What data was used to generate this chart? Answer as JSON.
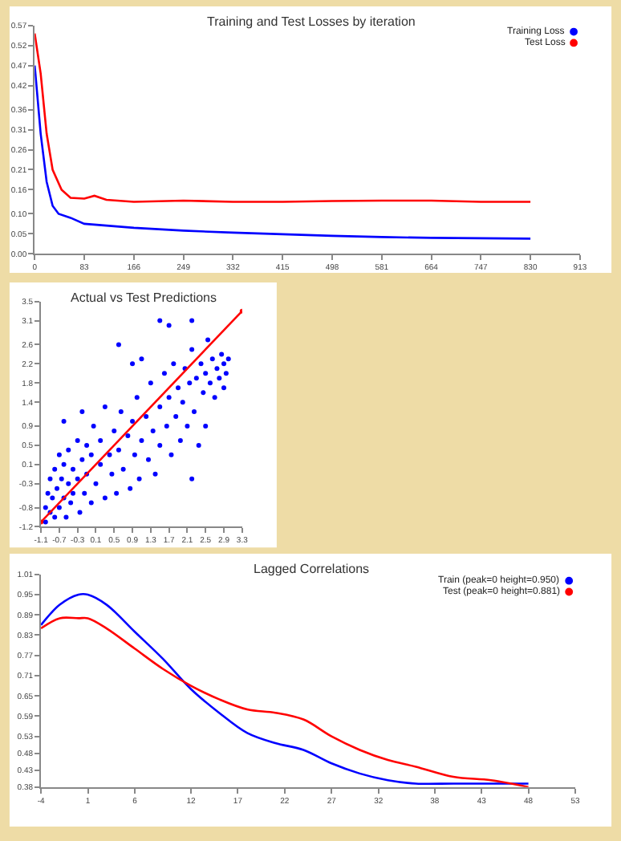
{
  "chart_data": [
    {
      "type": "line",
      "title": "Training and Test Losses by iteration",
      "legend": "top right",
      "marker": "none",
      "xlim": [
        0,
        913
      ],
      "xticks": [
        0,
        83,
        166,
        249,
        332,
        415,
        498,
        581,
        664,
        747,
        830,
        913
      ],
      "ylim": [
        0,
        0.57
      ],
      "yticks": [
        {
          "value": 0,
          "label": "0.00"
        },
        {
          "value": 0.05,
          "label": "0.05"
        },
        {
          "value": 0.1,
          "label": "0.10"
        },
        {
          "value": 0.16,
          "label": "0.16"
        },
        {
          "value": 0.21,
          "label": "0.21"
        },
        {
          "value": 0.26,
          "label": "0.26"
        },
        {
          "value": 0.31,
          "label": "0.31"
        },
        {
          "value": 0.36,
          "label": "0.36"
        },
        {
          "value": 0.42,
          "label": "0.42"
        },
        {
          "value": 0.47,
          "label": "0.47"
        },
        {
          "value": 0.52,
          "label": "0.52"
        },
        {
          "value": 0.57,
          "label": "0.57"
        }
      ],
      "series": [
        {
          "name": "Training Loss",
          "color": "#0000ff",
          "x": [
            0,
            10,
            20,
            30,
            40,
            60,
            83,
            166,
            249,
            332,
            415,
            498,
            581,
            664,
            747,
            830
          ],
          "values": [
            0.47,
            0.3,
            0.18,
            0.12,
            0.1,
            0.09,
            0.075,
            0.065,
            0.058,
            0.053,
            0.049,
            0.045,
            0.042,
            0.04,
            0.039,
            0.038
          ]
        },
        {
          "name": "Test Loss",
          "color": "#ff0000",
          "x": [
            0,
            10,
            20,
            30,
            45,
            60,
            83,
            100,
            120,
            166,
            249,
            332,
            415,
            498,
            581,
            664,
            747,
            830
          ],
          "values": [
            0.55,
            0.45,
            0.3,
            0.21,
            0.16,
            0.14,
            0.138,
            0.145,
            0.135,
            0.13,
            0.133,
            0.13,
            0.13,
            0.132,
            0.133,
            0.133,
            0.13,
            0.13
          ]
        }
      ]
    },
    {
      "type": "scatter",
      "title": "Actual vs Test Predictions",
      "marker": "circle",
      "xlim": [
        -1.1,
        3.3
      ],
      "xticks": [
        -1.1,
        -0.7,
        -0.3,
        0.1,
        0.5,
        0.9,
        1.3,
        1.7,
        2.1,
        2.5,
        2.9,
        3.3
      ],
      "ylim": [
        -1.2,
        3.5
      ],
      "yticks": [
        -1.2,
        -0.8,
        -0.3,
        0.1,
        0.5,
        0.9,
        1.4,
        1.8,
        2.2,
        2.6,
        3.1,
        3.5
      ],
      "series": [
        {
          "color": "#0000ff",
          "x": [
            -1.0,
            -1.0,
            -0.95,
            -0.9,
            -0.9,
            -0.85,
            -0.8,
            -0.8,
            -0.75,
            -0.7,
            -0.7,
            -0.65,
            -0.6,
            -0.6,
            -0.55,
            -0.5,
            -0.5,
            -0.45,
            -0.4,
            -0.4,
            -0.3,
            -0.3,
            -0.25,
            -0.2,
            -0.15,
            -0.1,
            -0.1,
            0.0,
            0.0,
            0.05,
            0.1,
            0.2,
            0.2,
            0.3,
            0.3,
            0.4,
            0.45,
            0.5,
            0.55,
            0.6,
            0.65,
            0.7,
            0.8,
            0.85,
            0.9,
            0.95,
            1.0,
            1.05,
            1.1,
            1.2,
            1.25,
            1.3,
            1.35,
            1.4,
            1.5,
            1.5,
            1.6,
            1.65,
            1.7,
            1.75,
            1.8,
            1.85,
            1.9,
            1.95,
            2.0,
            2.05,
            2.1,
            2.15,
            2.2,
            2.25,
            2.3,
            2.35,
            2.4,
            2.45,
            2.5,
            2.55,
            2.6,
            2.65,
            2.7,
            2.75,
            2.8,
            2.85,
            2.9,
            2.9,
            2.95,
            3.0,
            1.1,
            -0.2,
            0.6,
            1.5,
            1.7,
            2.2,
            2.5,
            2.2,
            0.9,
            -0.6
          ],
          "values": [
            -1.1,
            -0.8,
            -0.5,
            -0.9,
            -0.2,
            -0.6,
            -1.0,
            0.0,
            -0.4,
            -0.8,
            0.3,
            -0.2,
            -0.6,
            0.1,
            -1.0,
            -0.3,
            0.4,
            -0.7,
            0.0,
            -0.5,
            0.6,
            -0.2,
            -0.9,
            0.2,
            -0.5,
            0.5,
            -0.1,
            -0.7,
            0.3,
            0.9,
            -0.3,
            0.1,
            0.6,
            -0.6,
            1.3,
            0.3,
            -0.1,
            0.8,
            -0.5,
            0.4,
            1.2,
            0.0,
            0.7,
            -0.4,
            1.0,
            0.3,
            1.5,
            -0.2,
            0.6,
            1.1,
            0.2,
            1.8,
            0.8,
            -0.1,
            1.3,
            0.5,
            2.0,
            0.9,
            1.5,
            0.3,
            2.2,
            1.1,
            1.7,
            0.6,
            1.4,
            2.1,
            0.9,
            1.8,
            2.5,
            1.2,
            1.9,
            0.5,
            2.2,
            1.6,
            2.0,
            2.7,
            1.8,
            2.3,
            1.5,
            2.1,
            1.9,
            2.4,
            1.7,
            2.2,
            2.0,
            2.3,
            2.3,
            1.2,
            2.6,
            3.1,
            3.0,
            3.1,
            0.9,
            -0.2,
            2.2,
            1.0
          ]
        },
        {
          "type": "line",
          "color": "#ff0000",
          "x": [
            -1.1,
            3.3
          ],
          "values": [
            -1.1,
            3.3
          ]
        }
      ]
    },
    {
      "type": "line",
      "title": "Lagged Correlations",
      "legend": "top right",
      "marker": "none",
      "xlim": [
        -4,
        53
      ],
      "xticks": [
        -4,
        1,
        6,
        12,
        17,
        22,
        27,
        32,
        38,
        43,
        48,
        53
      ],
      "ylim": [
        0.38,
        1.01
      ],
      "yticks": [
        0.38,
        0.43,
        0.48,
        0.53,
        0.59,
        0.65,
        0.71,
        0.77,
        0.83,
        0.89,
        0.95,
        1.01
      ],
      "series": [
        {
          "name": "Train (peak=0 height=0.950)",
          "color": "#0000ff",
          "x": [
            -4,
            -2,
            0,
            1,
            3,
            6,
            9,
            12,
            15,
            18,
            21,
            24,
            27,
            30,
            33,
            36,
            40,
            44,
            48
          ],
          "values": [
            0.86,
            0.92,
            0.95,
            0.95,
            0.92,
            0.84,
            0.76,
            0.67,
            0.6,
            0.54,
            0.51,
            0.49,
            0.45,
            0.42,
            0.4,
            0.39,
            0.39,
            0.39,
            0.39
          ]
        },
        {
          "name": "Test (peak=0 height=0.881)",
          "color": "#ff0000",
          "x": [
            -4,
            -2,
            0,
            1,
            3,
            6,
            9,
            12,
            15,
            18,
            21,
            24,
            27,
            30,
            33,
            36,
            40,
            44,
            48
          ],
          "values": [
            0.85,
            0.88,
            0.88,
            0.88,
            0.85,
            0.79,
            0.73,
            0.68,
            0.64,
            0.61,
            0.6,
            0.58,
            0.53,
            0.49,
            0.46,
            0.44,
            0.41,
            0.4,
            0.38
          ]
        }
      ]
    }
  ]
}
